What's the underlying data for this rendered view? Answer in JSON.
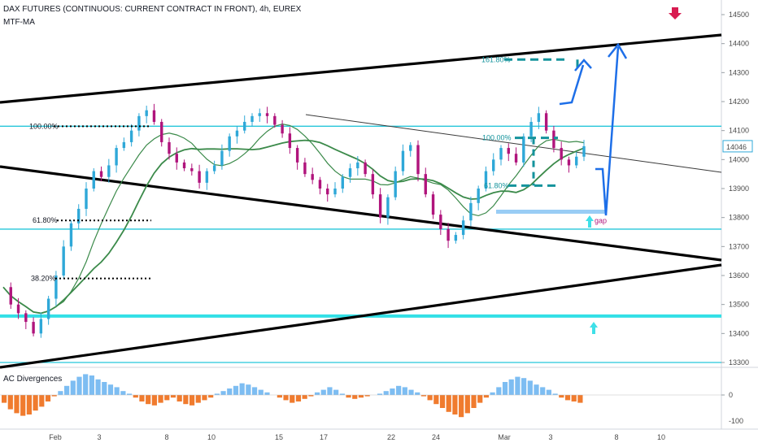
{
  "header": {
    "title": "DAX FUTURES (CONTINUOUS: CURRENT CONTRACT IN FRONT), 4h, EUREX",
    "indicator": "MTF-MA"
  },
  "sub_panel": {
    "title": "AC Divergences",
    "axis_ticks": [
      "0",
      "-100"
    ]
  },
  "colors": {
    "bull_candle": "#2fa8d8",
    "bear_candle": "#b0147c",
    "cyan_level": "#26c6da",
    "dashed_target": "#14939c",
    "arrow_blue": "#1e6fe8",
    "ma_green": "#3b8a4a",
    "hist_pos": "#7dbdf2",
    "hist_neg": "#f07b2e",
    "down_arrow": "#d81b50"
  },
  "annotations": {
    "price_label": "14046",
    "gap": "gap",
    "fib_left": [
      "100.00%",
      "61.80%",
      "38.20%"
    ],
    "fib_right_top": "161.80%",
    "fib_right_mid": "100.00%",
    "fib_right_low": "61.80%"
  },
  "chart_data": {
    "type": "candlestick",
    "title": "DAX FUTURES (CONTINUOUS: CURRENT CONTRACT IN FRONT), 4h, EUREX",
    "timeframe": "4h",
    "y_ticks": [
      14500,
      14400,
      14300,
      14200,
      14100,
      14000,
      13900,
      13800,
      13700,
      13600,
      13500,
      13400,
      13300
    ],
    "ylim": [
      13280,
      14530
    ],
    "x_ticks": [
      "Feb",
      "3",
      "8",
      "10",
      "15",
      "17",
      "22",
      "24",
      "Mar",
      "3",
      "8",
      "10"
    ],
    "last_price": 14046,
    "horizontal_levels": [
      14115,
      13760,
      13300
    ],
    "support_zone": 13460,
    "gap_level": 13820,
    "fib_levels": {
      "left": {
        "100.00%": 14115,
        "61.80%": 13790,
        "38.20%": 13590
      },
      "right": {
        "161.80%": 14345,
        "100.00%": 14075,
        "61.80%": 13910
      }
    },
    "close_path": [
      13560,
      13500,
      13470,
      13440,
      13400,
      13450,
      13520,
      13600,
      13700,
      13780,
      13830,
      13900,
      13960,
      13940,
      13980,
      14040,
      14060,
      14100,
      14150,
      14170,
      14130,
      14060,
      14020,
      13990,
      13970,
      13960,
      13920,
      13960,
      13980,
      14030,
      14080,
      14100,
      14130,
      14150,
      14160,
      14150,
      14120,
      14090,
      14040,
      13990,
      13950,
      13930,
      13900,
      13880,
      13900,
      13940,
      13970,
      13990,
      13950,
      13880,
      13800,
      13870,
      13960,
      14030,
      14050,
      13950,
      13880,
      13810,
      13760,
      13720,
      13740,
      13790,
      13850,
      13900,
      13960,
      14000,
      14040,
      14020,
      13990,
      14080,
      14130,
      14160,
      14100,
      14040,
      14000,
      13980,
      14010,
      14046
    ],
    "ac_histogram": [
      -30,
      -55,
      -70,
      -80,
      -75,
      -60,
      -45,
      -25,
      -5,
      15,
      35,
      55,
      70,
      80,
      75,
      60,
      50,
      40,
      30,
      15,
      5,
      -10,
      -25,
      -35,
      -40,
      -30,
      -20,
      -10,
      -25,
      -35,
      -40,
      -30,
      -20,
      -10,
      5,
      15,
      25,
      35,
      45,
      40,
      30,
      20,
      10,
      0,
      -10,
      -20,
      -30,
      -25,
      -15,
      -5,
      10,
      20,
      30,
      20,
      5,
      -10,
      -15,
      -10,
      -5,
      0,
      5,
      15,
      25,
      35,
      30,
      20,
      10,
      -5,
      -20,
      -35,
      -50,
      -65,
      -75,
      -85,
      -70,
      -50,
      -30,
      -10,
      10,
      30,
      50,
      60,
      70,
      65,
      55,
      40,
      30,
      20,
      5,
      -10,
      -20,
      -25,
      -30
    ]
  }
}
